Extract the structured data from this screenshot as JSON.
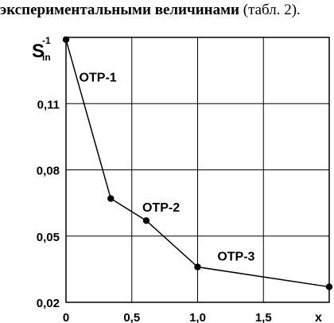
{
  "caption": {
    "text_bold": "экспериментальными величинами",
    "text_rest": " (табл. 2)."
  },
  "chart_data": {
    "type": "line",
    "ylabel_main": "S",
    "ylabel_sup": "-1",
    "ylabel_sub": "in",
    "xlabel": "x",
    "xlim": [
      0,
      2
    ],
    "ylim": [
      0.02,
      0.14
    ],
    "x_ticks": [
      0,
      0.5,
      1.0,
      1.5
    ],
    "x_tick_labels": [
      "0",
      "0,5",
      "1,0",
      "1,5"
    ],
    "y_ticks": [
      0.02,
      0.05,
      0.08,
      0.11
    ],
    "y_tick_labels": [
      "0,02",
      "0,05",
      "0,08",
      "0,11"
    ],
    "grid": true,
    "series": [
      {
        "points": [
          {
            "x": 0.0,
            "y": 0.139
          },
          {
            "x": 0.34,
            "y": 0.067
          },
          {
            "x": 0.61,
            "y": 0.057
          },
          {
            "x": 1.0,
            "y": 0.036
          },
          {
            "x": 2.0,
            "y": 0.027
          }
        ]
      }
    ],
    "annotations": [
      {
        "text": "OTP-1",
        "x": 0.1,
        "y": 0.12
      },
      {
        "text": "OTP-2",
        "x": 0.58,
        "y": 0.061
      },
      {
        "text": "OTP-3",
        "x": 1.15,
        "y": 0.039
      }
    ],
    "colors": {
      "line": "#000000",
      "grid": "#000000",
      "background": "#ffffff"
    }
  }
}
